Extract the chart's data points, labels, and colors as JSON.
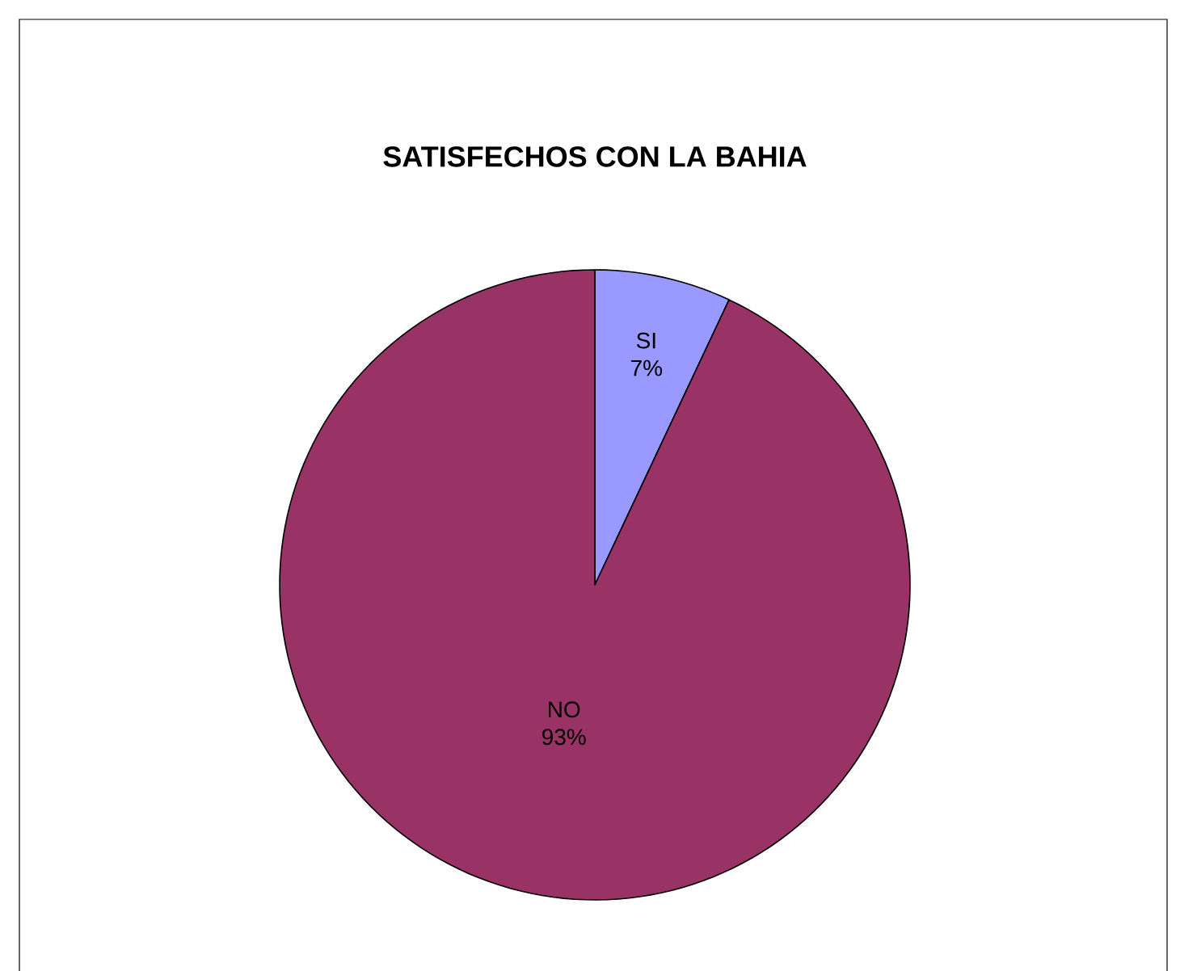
{
  "chart_data": {
    "type": "pie",
    "title": "SATISFECHOS CON LA BAHIA",
    "categories": [
      "SI",
      "NO"
    ],
    "values": [
      7,
      93
    ],
    "value_labels": [
      "7%",
      "93%"
    ],
    "colors": [
      "#9999ff",
      "#993366"
    ]
  }
}
